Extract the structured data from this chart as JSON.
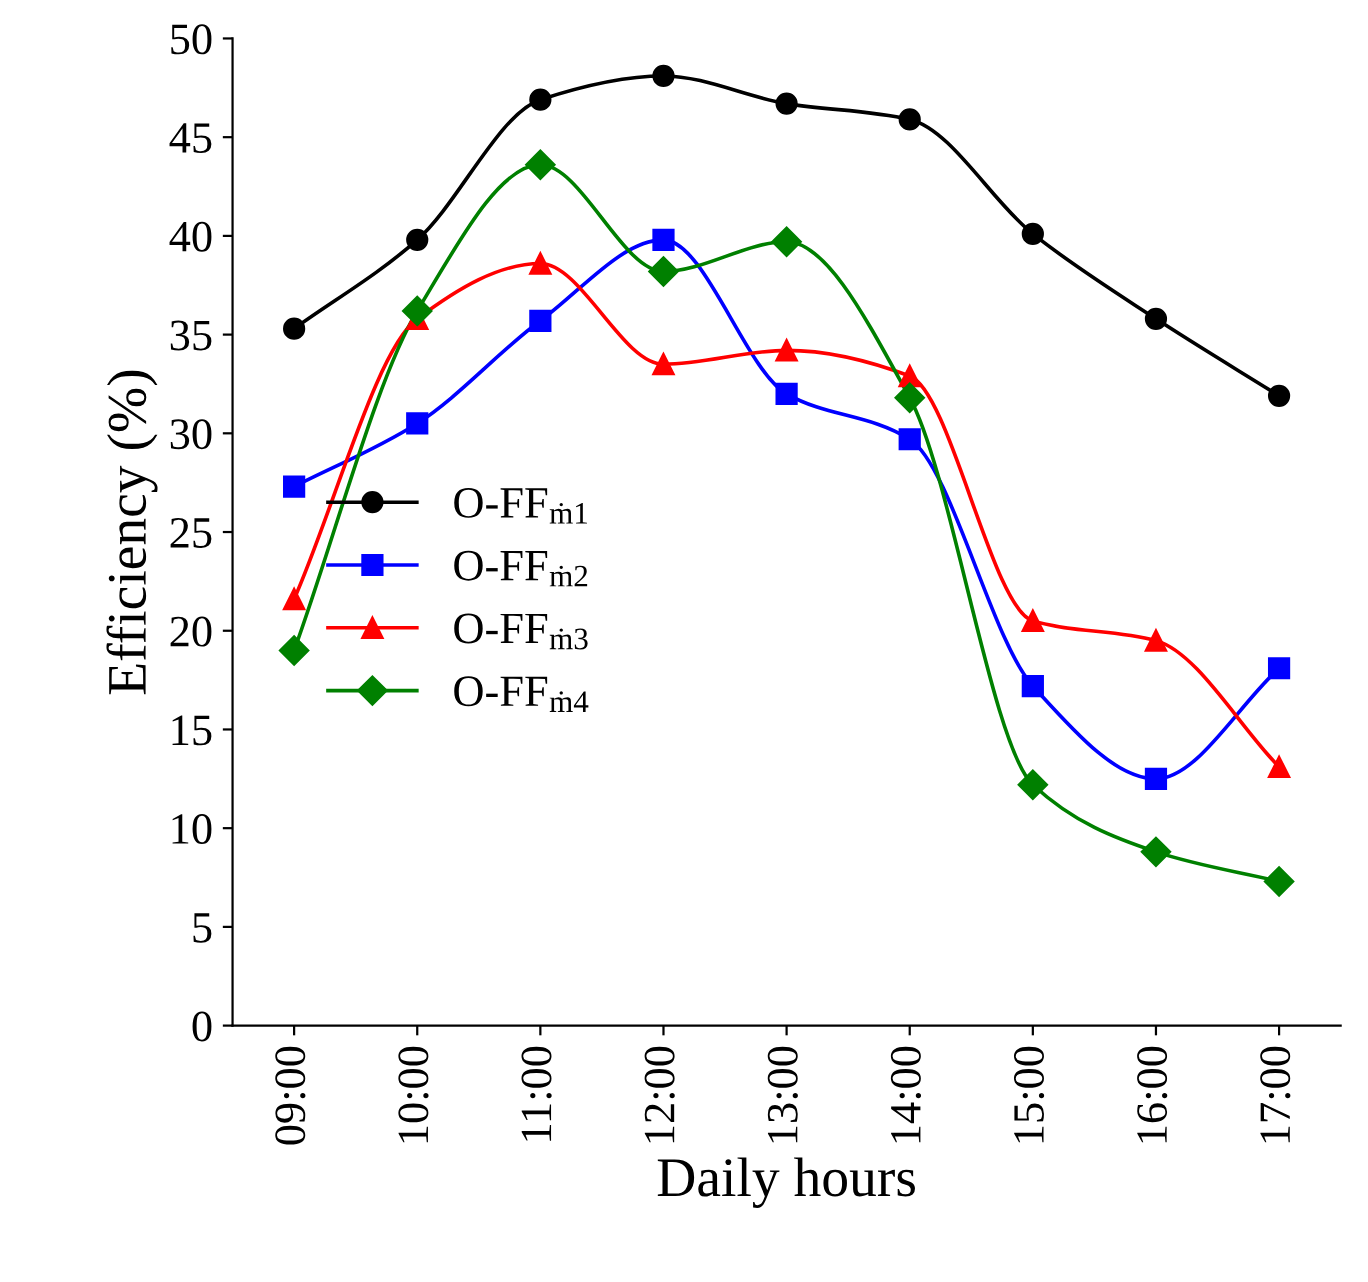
{
  "chart_data": {
    "type": "line",
    "xlabel": "Daily hours",
    "ylabel": "Efficiency (%)",
    "categories": [
      "09:00",
      "10:00",
      "11:00",
      "12:00",
      "13:00",
      "14:00",
      "15:00",
      "16:00",
      "17:00"
    ],
    "ylim": [
      0,
      50
    ],
    "yticks": [
      0,
      5,
      10,
      15,
      20,
      25,
      30,
      35,
      40,
      45,
      50
    ],
    "grid": false,
    "legend": "left",
    "line_style": "solid",
    "series": [
      {
        "name": "O-FF$_{ṁ1}$",
        "color": "#000000",
        "marker": "circle",
        "values": [
          35.3,
          39.8,
          46.9,
          48.1,
          46.7,
          45.9,
          40.1,
          35.8,
          31.9
        ]
      },
      {
        "name": "O-FF$_{ṁ2}$",
        "color": "#0000ff",
        "marker": "square",
        "values": [
          27.3,
          30.5,
          35.7,
          39.8,
          32.0,
          29.7,
          17.2,
          12.5,
          18.1
        ]
      },
      {
        "name": "O-FF$_{ṁ3}$",
        "color": "#ff0000",
        "marker": "triangle",
        "values": [
          21.6,
          35.8,
          38.6,
          33.5,
          34.2,
          32.9,
          20.5,
          19.5,
          13.1
        ]
      },
      {
        "name": "O-FF$_{ṁ4}$",
        "color": "#008000",
        "marker": "diamond",
        "values": [
          19.0,
          36.2,
          43.6,
          38.2,
          39.7,
          31.8,
          12.2,
          8.8,
          7.3
        ]
      }
    ]
  }
}
